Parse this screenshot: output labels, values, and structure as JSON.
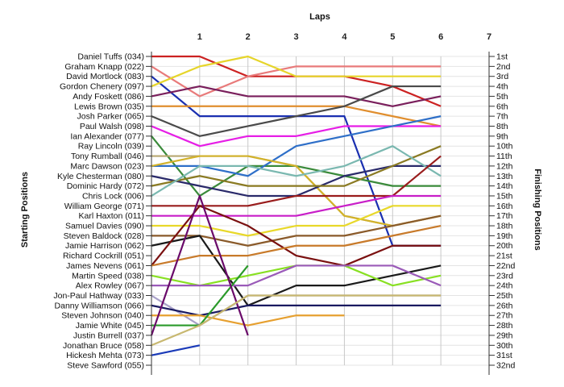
{
  "chart_data": {
    "type": "line",
    "xlabel": "Laps",
    "ylabel_left": "Starting Positions",
    "ylabel_right": "Finishing Positions",
    "x_ticks": [
      1,
      2,
      3,
      4,
      5,
      6,
      7
    ],
    "x_range": [
      0,
      7
    ],
    "y_range": [
      1,
      32
    ],
    "grid": true,
    "starting_labels": [
      "Daniel Tuffs (034)",
      "Graham Knapp (022)",
      "David Mortlock (083)",
      "Gordon Chenery (097)",
      "Andy Foskett (086)",
      "Lewis Brown (035)",
      "Josh Parker (065)",
      "Paul Walsh (098)",
      "Ian Alexander (077)",
      "Ray Lincoln (039)",
      "Tony Rumball (046)",
      "Marc Dawson (023)",
      "Kyle Chesterman (080)",
      "Dominic Hardy (072)",
      "Chris Lock (006)",
      "William George (071)",
      "Karl Haxton (011)",
      "Samuel Davies (090)",
      "Steven Baldock (028)",
      "Jamie Harrison (062)",
      "Richard Cockrill (051)",
      "James Nevens (061)",
      "Martin Speed (038)",
      "Alex Rowley (067)",
      "Jon-Paul Hathway (033)",
      "Danny Williamson (066)",
      "Steven Johnson (040)",
      "Jamie White (045)",
      "Justin Burrell (037)",
      "Jonathan Bruce (058)",
      "Hickesh Mehta (073)",
      "Steve Sawford (055)"
    ],
    "finishing_labels": [
      "1st",
      "2nd",
      "3rd",
      "4th",
      "5th",
      "6th",
      "7th",
      "8th",
      "9th",
      "10th",
      "11th",
      "12th",
      "13th",
      "14th",
      "15th",
      "16th",
      "17th",
      "18th",
      "19th",
      "20th",
      "21st",
      "22nd",
      "23rd",
      "24th",
      "25th",
      "26th",
      "27th",
      "28th",
      "29th",
      "30th",
      "31st",
      "32nd"
    ],
    "series": [
      {
        "color": "#cc2222",
        "values": [
          1,
          1,
          3,
          3,
          3,
          4,
          6
        ]
      },
      {
        "color": "#e87a7a",
        "values": [
          2,
          5,
          3,
          2,
          2,
          2,
          2
        ]
      },
      {
        "color": "#1a2fb0",
        "values": [
          3,
          7,
          7,
          7,
          7,
          20,
          20
        ]
      },
      {
        "color": "#e6d52a",
        "values": [
          4,
          2,
          1,
          3,
          3,
          3,
          3
        ]
      },
      {
        "color": "#7a1f5c",
        "values": [
          5,
          4,
          5,
          5,
          5,
          6,
          5
        ]
      },
      {
        "color": "#e08e2e",
        "values": [
          6,
          6,
          6,
          6,
          6,
          7,
          8
        ]
      },
      {
        "color": "#4a4a4a",
        "values": [
          7,
          9,
          8,
          7,
          6,
          4,
          4
        ]
      },
      {
        "color": "#e61ee6",
        "values": [
          8,
          10,
          9,
          9,
          8,
          8,
          8
        ]
      },
      {
        "color": "#3a8a3a",
        "values": [
          9,
          15,
          12,
          12,
          13,
          14,
          14
        ]
      },
      {
        "color": "#2e6fc8",
        "values": [
          12,
          12,
          13,
          10,
          9,
          8,
          7
        ]
      },
      {
        "color": "#b8a870",
        "values": [
          11,
          11,
          11,
          12,
          17,
          18,
          17
        ]
      },
      {
        "color": "#d2b22a",
        "values": [
          12,
          11,
          11,
          12,
          17,
          18,
          17
        ]
      },
      {
        "color": "#2a2a6a",
        "values": [
          13,
          14,
          15,
          15,
          13,
          12,
          12
        ]
      },
      {
        "color": "#8a7a22",
        "values": [
          14,
          13,
          14,
          14,
          14,
          12,
          10
        ]
      },
      {
        "color": "#7ab8b0",
        "values": [
          15,
          12,
          12,
          13,
          12,
          10,
          13
        ]
      },
      {
        "color": "#991c1c",
        "values": [
          16,
          16,
          16,
          15,
          15,
          15,
          11
        ]
      },
      {
        "color": "#c81ec8",
        "values": [
          17,
          17,
          17,
          17,
          16,
          15,
          15
        ]
      },
      {
        "color": "#e8d82a",
        "values": [
          18,
          18,
          19,
          18,
          18,
          16,
          16
        ]
      },
      {
        "color": "#8a5a2a",
        "values": [
          19,
          19,
          20,
          19,
          19,
          18,
          17
        ]
      },
      {
        "color": "#1a1a1a",
        "values": [
          20,
          19,
          26,
          24,
          24,
          23,
          22
        ]
      },
      {
        "color": "#7a1010",
        "values": [
          22,
          16,
          18,
          21,
          22,
          20,
          20
        ]
      },
      {
        "color": "#c87a2a",
        "values": [
          22,
          21,
          21,
          20,
          20,
          19,
          18
        ]
      },
      {
        "color": "#88e022",
        "values": [
          23,
          24,
          23,
          22,
          22,
          24,
          23
        ]
      },
      {
        "color": "#9a5ab8",
        "values": [
          24,
          24,
          24,
          22,
          22,
          22,
          24
        ]
      },
      {
        "color": "#a8a0c8",
        "values": [
          25,
          28,
          25,
          25,
          25,
          25,
          25
        ]
      },
      {
        "color": "#1a1a60",
        "values": [
          26,
          27,
          26,
          26,
          26,
          26,
          26
        ]
      },
      {
        "color": "#e6a030",
        "values": [
          27,
          27,
          28,
          27,
          27
        ]
      },
      {
        "color": "#2a9a2a",
        "values": [
          28,
          28,
          22
        ]
      },
      {
        "color": "#6a0a6a",
        "values": [
          29,
          15,
          29
        ]
      },
      {
        "color": "#c8b870",
        "values": [
          30,
          28,
          25,
          25,
          25,
          25,
          25
        ]
      },
      {
        "color": "#1a3ab8",
        "values": [
          31,
          30
        ]
      }
    ]
  }
}
